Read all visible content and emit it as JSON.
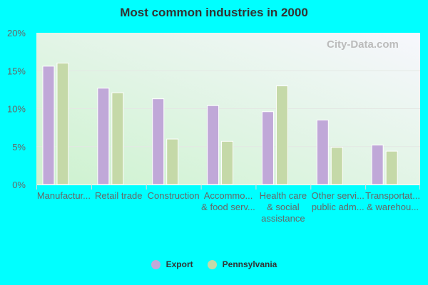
{
  "chart_data": {
    "type": "bar",
    "title": "Most common industries in 2000",
    "categories": [
      [
        "Manufactur..."
      ],
      [
        "Retail trade"
      ],
      [
        "Construction"
      ],
      [
        "Accommo...",
        "& food serv..."
      ],
      [
        "Health care",
        "& social",
        "assistance"
      ],
      [
        "Other servi...",
        "public adm..."
      ],
      [
        "Transportat...",
        "& warehou..."
      ]
    ],
    "series": [
      {
        "name": "Export",
        "color": "#c0a8d8",
        "values": [
          15.6,
          12.7,
          11.3,
          10.4,
          9.6,
          8.5,
          5.2
        ]
      },
      {
        "name": "Pennsylvania",
        "color": "#c5d9a8",
        "values": [
          16.0,
          12.1,
          6.0,
          5.7,
          13.0,
          4.9,
          4.4
        ]
      }
    ],
    "ylim": [
      0,
      20
    ],
    "yticks": [
      "0%",
      "5%",
      "10%",
      "15%",
      "20%"
    ],
    "grid": true,
    "legend": "bottom",
    "watermark": "City-Data.com"
  }
}
